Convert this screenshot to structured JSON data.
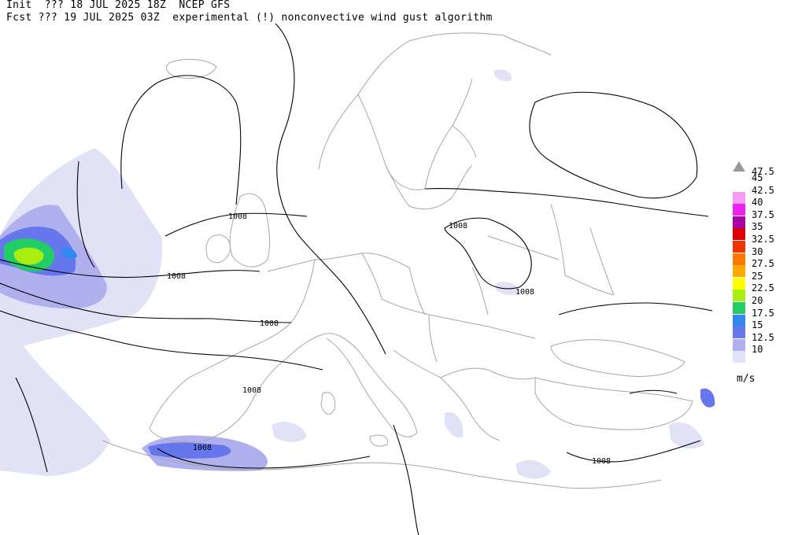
{
  "header": {
    "line1": "Init  ??? 18 JUL 2025 18Z  NCEP GFS",
    "line2": "Fcst ??? 19 JUL 2025 03Z  experimental (!) nonconvective wind gust algorithm"
  },
  "isobar_labels": [
    "1008",
    "1008",
    "1008",
    "1008",
    "1008",
    "1008",
    "1008",
    "1008"
  ],
  "legend": {
    "top_label": "47.5",
    "units": "m/s",
    "levels": [
      {
        "label": "45",
        "color": "#ffffff"
      },
      {
        "label": "42.5",
        "color": "#f59bf0"
      },
      {
        "label": "40",
        "color": "#ee22ee"
      },
      {
        "label": "37.5",
        "color": "#aa00aa"
      },
      {
        "label": "35",
        "color": "#dd0000"
      },
      {
        "label": "32.5",
        "color": "#ee3300"
      },
      {
        "label": "30",
        "color": "#ff7700"
      },
      {
        "label": "27.5",
        "color": "#ffaa00"
      },
      {
        "label": "25",
        "color": "#ffff00"
      },
      {
        "label": "22.5",
        "color": "#aaee11"
      },
      {
        "label": "20",
        "color": "#22cc66"
      },
      {
        "label": "17.5",
        "color": "#3388ee"
      },
      {
        "label": "15",
        "color": "#6677ee"
      },
      {
        "label": "12.5",
        "color": "#b0b0ee"
      },
      {
        "label": "10",
        "color": "#e2e2f6"
      }
    ]
  },
  "colors": {
    "coast": "#a6a6a6",
    "isobar": "#000000"
  }
}
